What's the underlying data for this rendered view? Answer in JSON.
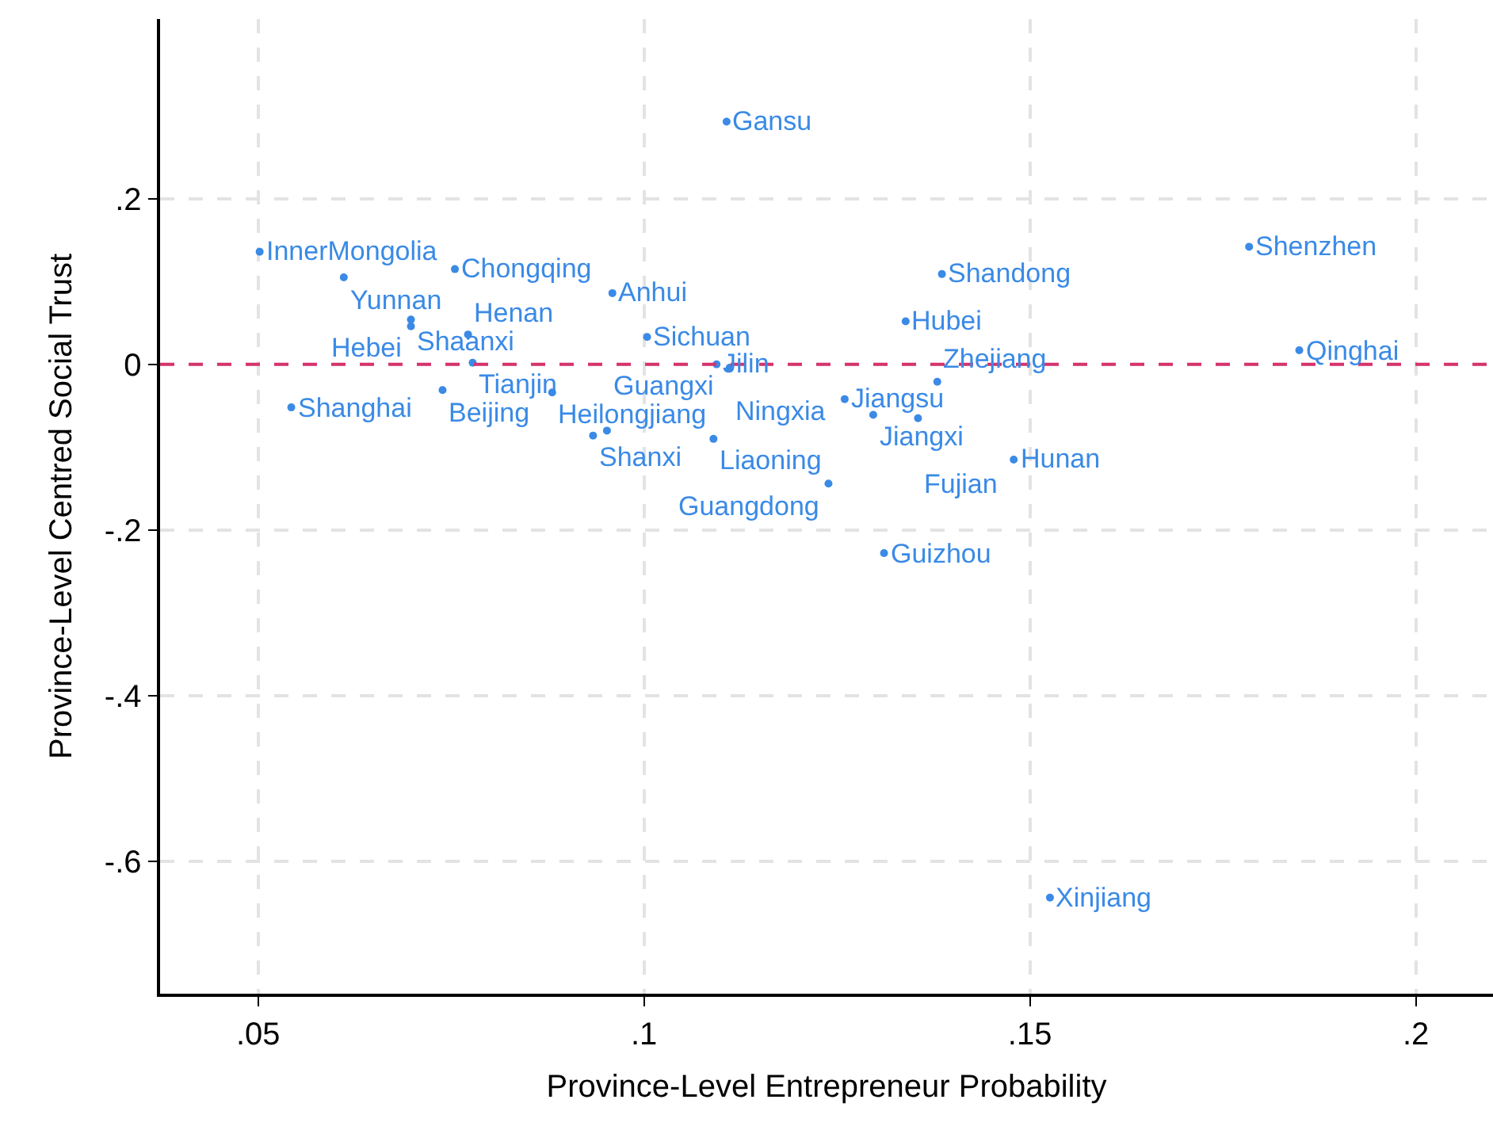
{
  "chart_data": {
    "type": "scatter",
    "xlabel": "Province-Level Entrepreneur Probability",
    "ylabel": "Province-Level Centred Social Trust",
    "x": [
      0.0502,
      0.0611,
      0.0755,
      0.0959,
      0.0698,
      0.0698,
      0.0772,
      0.0778,
      0.0739,
      0.0881,
      0.0543,
      0.1004,
      0.1107,
      0.1094,
      0.1111,
      0.0934,
      0.0952,
      0.109,
      0.126,
      0.1297,
      0.1355,
      0.138,
      0.1239,
      0.1479,
      0.1311,
      0.1526,
      0.1386,
      0.1339,
      0.1784,
      0.1849
    ],
    "series": [
      {
        "color": "#3a8ae6",
        "values": [
          0.136,
          0.105,
          0.115,
          0.086,
          0.054,
          0.046,
          0.036,
          0.002,
          -0.031,
          -0.034,
          -0.052,
          0.033,
          0.293,
          0.0,
          -0.004,
          -0.086,
          -0.08,
          -0.09,
          -0.042,
          -0.061,
          -0.065,
          -0.021,
          -0.144,
          -0.115,
          -0.228,
          -0.644,
          0.109,
          0.052,
          0.142,
          0.017
        ]
      }
    ],
    "annotations": [
      {
        "text": "InnerMongolia",
        "x": 0.0502,
        "y": 0.136
      },
      {
        "text": "Yunnan",
        "x": 0.0611,
        "y": 0.105
      },
      {
        "text": "Chongqing",
        "x": 0.0755,
        "y": 0.115
      },
      {
        "text": "Anhui",
        "x": 0.0959,
        "y": 0.086
      },
      {
        "text": "Shaanxi",
        "x": 0.0698,
        "y": 0.054
      },
      {
        "text": "Hebei",
        "x": 0.0698,
        "y": 0.046
      },
      {
        "text": "Henan",
        "x": 0.0772,
        "y": 0.036
      },
      {
        "text": "Tianjin",
        "x": 0.0778,
        "y": 0.002
      },
      {
        "text": "Beijing",
        "x": 0.0739,
        "y": -0.031
      },
      {
        "text": "Heilongjiang",
        "x": 0.0881,
        "y": -0.034
      },
      {
        "text": "Shanghai",
        "x": 0.0543,
        "y": -0.052
      },
      {
        "text": "Sichuan",
        "x": 0.1004,
        "y": 0.033
      },
      {
        "text": "Gansu",
        "x": 0.1107,
        "y": 0.293
      },
      {
        "text": "Jilin",
        "x": 0.1094,
        "y": 0.0
      },
      {
        "text": "Ningxia",
        "x": 0.1111,
        "y": -0.004
      },
      {
        "text": "Shanxi",
        "x": 0.0934,
        "y": -0.086
      },
      {
        "text": "Guangxi",
        "x": 0.0952,
        "y": -0.08
      },
      {
        "text": "Liaoning",
        "x": 0.109,
        "y": -0.09
      },
      {
        "text": "Jiangsu",
        "x": 0.126,
        "y": -0.042
      },
      {
        "text": "Jiangxi",
        "x": 0.1297,
        "y": -0.061
      },
      {
        "text": "Fujian",
        "x": 0.1355,
        "y": -0.065
      },
      {
        "text": "Zhejiang",
        "x": 0.138,
        "y": -0.021
      },
      {
        "text": "Guangdong",
        "x": 0.1239,
        "y": -0.144
      },
      {
        "text": "Hunan",
        "x": 0.1479,
        "y": -0.115
      },
      {
        "text": "Guizhou",
        "x": 0.1311,
        "y": -0.228
      },
      {
        "text": "Xinjiang",
        "x": 0.1526,
        "y": -0.644
      },
      {
        "text": "Shandong",
        "x": 0.1386,
        "y": 0.109
      },
      {
        "text": "Hubei",
        "x": 0.1339,
        "y": 0.052
      },
      {
        "text": "Shenzhen",
        "x": 0.1784,
        "y": 0.142
      },
      {
        "text": "Qinghai",
        "x": 0.1849,
        "y": 0.017
      }
    ],
    "xlim": [
      0.0373,
      0.21
    ],
    "ylim": [
      -0.76,
      0.417
    ],
    "xticks": [
      {
        "value": 0.05,
        "label": ".05"
      },
      {
        "value": 0.1,
        "label": ".1"
      },
      {
        "value": 0.15,
        "label": ".15"
      },
      {
        "value": 0.2,
        "label": ".2"
      }
    ],
    "yticks": [
      {
        "value": 0.2,
        "label": ".2"
      },
      0,
      {
        "value": -0.2,
        "label": "-.2"
      },
      {
        "value": -0.4,
        "label": "-.4"
      },
      {
        "value": -0.6,
        "label": "-.6"
      }
    ],
    "ref_lines": [
      {
        "axis": "y",
        "value": 0,
        "label": null,
        "color": "#d6336c",
        "line_style": "dashed"
      }
    ],
    "grid": true,
    "marker": "circle"
  }
}
